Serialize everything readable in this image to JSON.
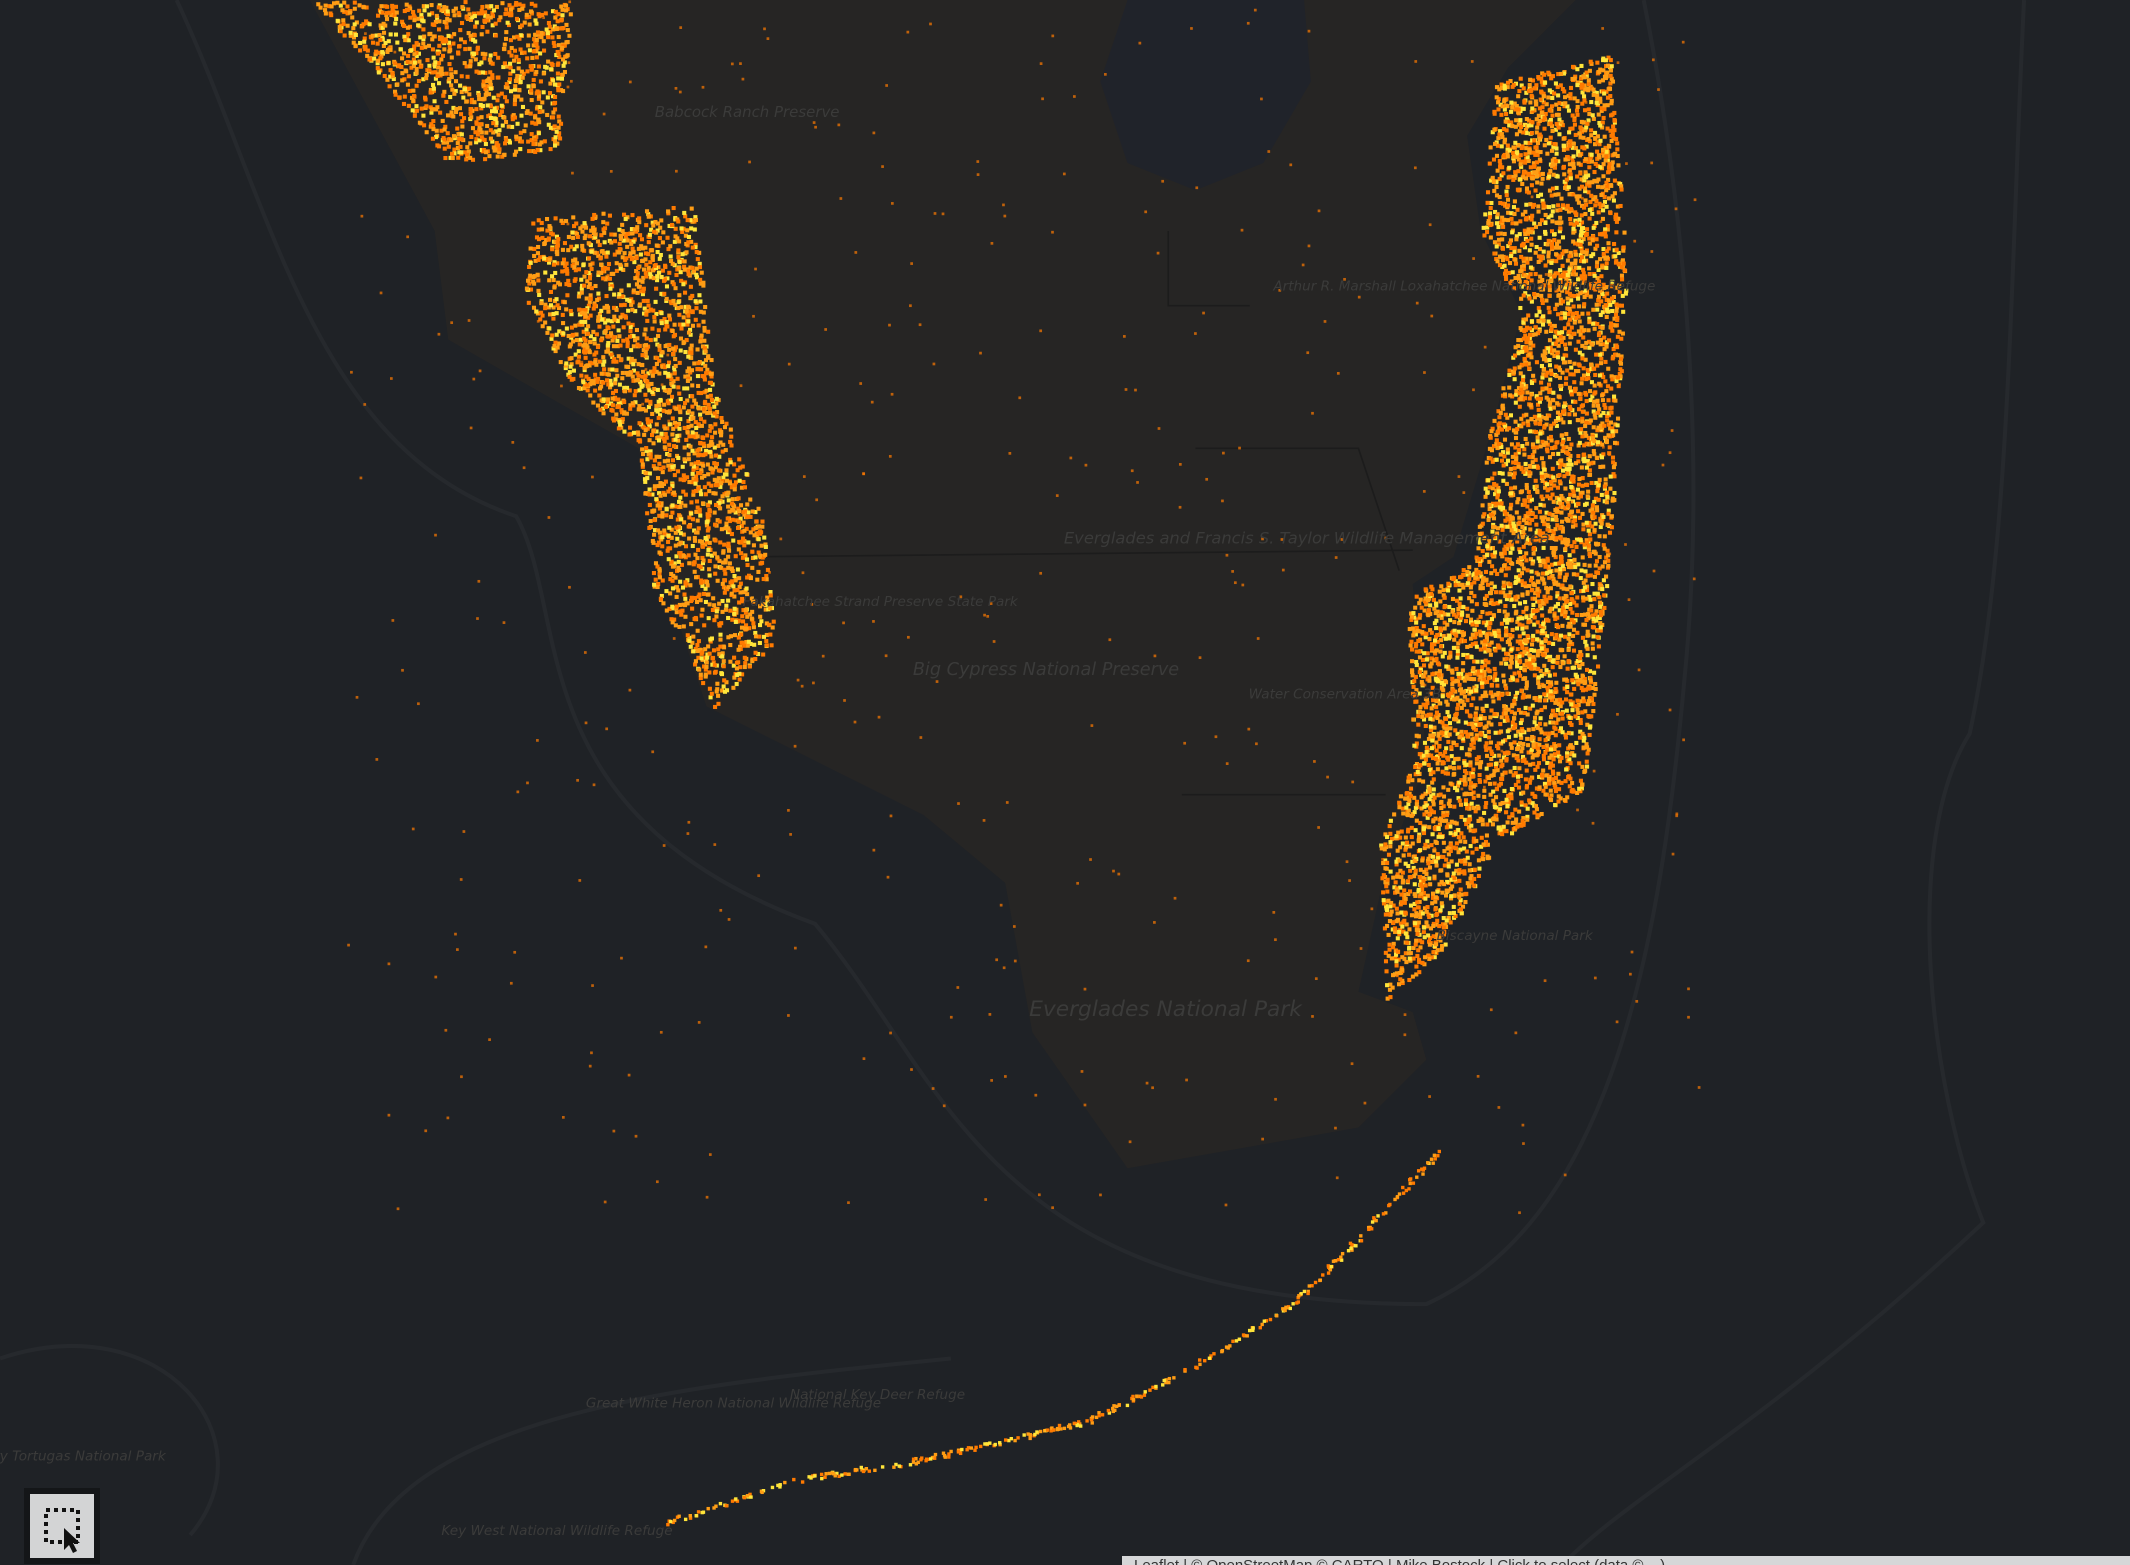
{
  "map": {
    "colors": {
      "water": "#1f2226",
      "land": "#262524",
      "heat_low": "#ff7a00",
      "heat_mid": "#ff9d14",
      "heat_high": "#ffe53a",
      "label": "#3b3b3a"
    },
    "labels": {
      "babcock": "Babcock Ranch Preserve",
      "fakahatchee": "Fakahatchee Strand Preserve State Park",
      "big_cypress": "Big Cypress National Preserve",
      "everglades_wma": "Everglades and Francis S. Taylor Wildlife Management Area",
      "wca3b": "Water Conservation Area 3B",
      "loxahatchee": "Arthur R. Marshall Loxahatchee National Wildlife Refuge",
      "everglades_np": "Everglades National Park",
      "biscayne": "Biscayne National Park",
      "great_white_heron": "Great White Heron National Wildlife Refuge",
      "key_deer": "National Key Deer Refuge",
      "key_west": "Key West National Wildlife Refuge",
      "dry_tortugas": "Dry Tortugas National Park"
    }
  },
  "controls": {
    "select_tool_icon": "box-select-icon"
  },
  "attribution": "Leaflet | © OpenStreetMap © CARTO | Mike Bostock | Click to select (data © ...)"
}
